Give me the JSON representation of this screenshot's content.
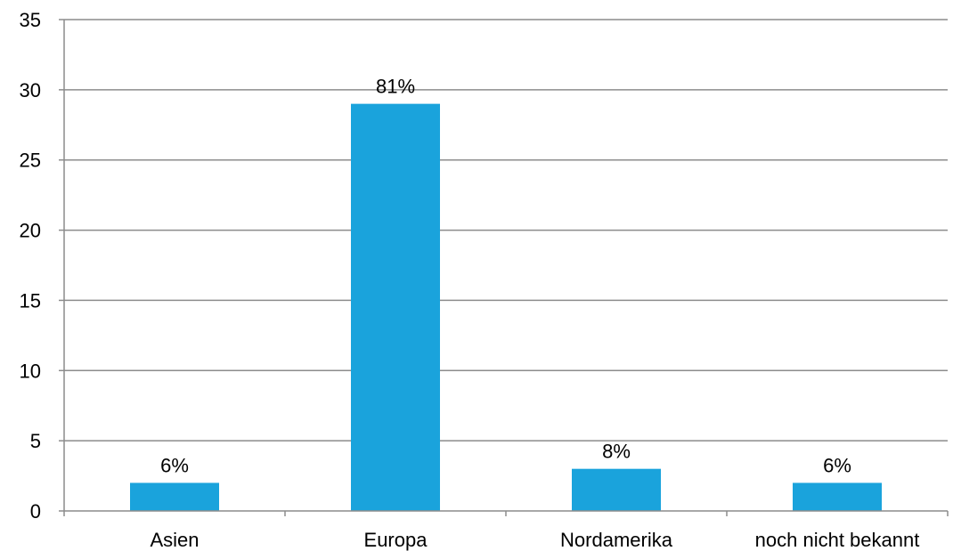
{
  "chart_data": {
    "type": "bar",
    "title": "",
    "xlabel": "",
    "ylabel": "",
    "categories": [
      "Asien",
      "Europa",
      "Nordamerika",
      "noch nicht bekannt"
    ],
    "values": [
      2,
      29,
      3,
      2
    ],
    "data_labels": [
      "6%",
      "81%",
      "8%",
      "6%"
    ],
    "ylim": [
      0,
      35
    ],
    "yticks": [
      0,
      5,
      10,
      15,
      20,
      25,
      30,
      35
    ],
    "ytick_labels": [
      "0",
      "5",
      "10",
      "15",
      "20",
      "25",
      "30",
      "35"
    ],
    "grid": true,
    "legend": "none",
    "bar_color": "#1aa3dc"
  }
}
